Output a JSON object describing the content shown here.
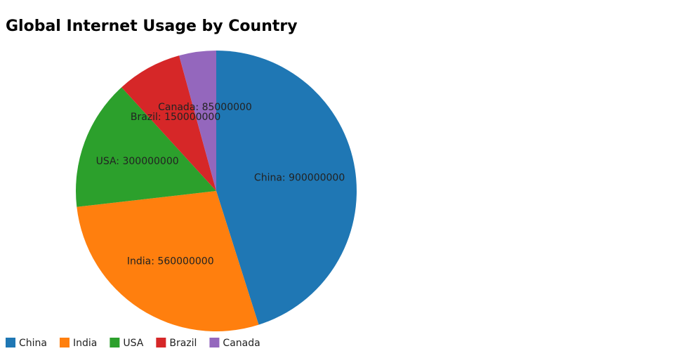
{
  "chart_data": {
    "type": "pie",
    "title": "Global Internet Usage by Country",
    "categories": [
      "China",
      "India",
      "USA",
      "Brazil",
      "Canada"
    ],
    "values": [
      900000000,
      560000000,
      300000000,
      150000000,
      85000000
    ],
    "value_labels": [
      "China: 900000000",
      "India: 560000000",
      "USA: 300000000",
      "Brazil: 150000000",
      "Canada: 85000000"
    ],
    "colors": [
      "#1f77b4",
      "#ff7f0e",
      "#2ca02c",
      "#d62728",
      "#9467bd"
    ],
    "legend": "bottom-left"
  }
}
